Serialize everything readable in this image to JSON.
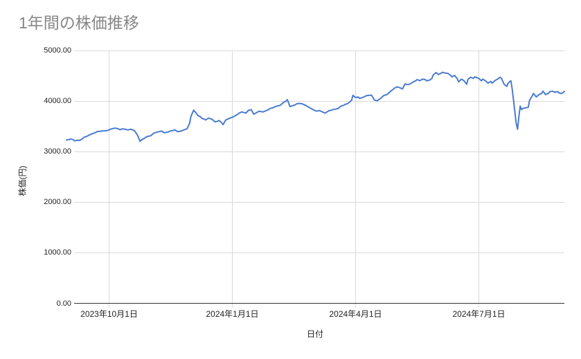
{
  "title": "1年間の株価推移",
  "colors": {
    "background": "#ffffff",
    "title_text": "#878787",
    "tick_text": "#222222",
    "grid": "#d9d9d9",
    "axis_line": "#333333",
    "series_line": "#4a7bd0"
  },
  "chart_data": {
    "type": "line",
    "title": "1年間の株価推移",
    "xlabel": "日付",
    "ylabel": "株価(円)",
    "legend": "none",
    "grid": true,
    "ylim": [
      0,
      5000
    ],
    "xlim": [
      0,
      372
    ],
    "x_unit": "days (0 ≈ 2023-09-01, read from tick spacing)",
    "y_axis": {
      "title": "株価(円)",
      "ticks": [
        {
          "value": 0,
          "label": "0.00"
        },
        {
          "value": 1000,
          "label": "1000.00"
        },
        {
          "value": 2000,
          "label": "2000.00"
        },
        {
          "value": 3000,
          "label": "3000.00"
        },
        {
          "value": 4000,
          "label": "4000.00"
        },
        {
          "value": 5000,
          "label": "5000.00"
        }
      ]
    },
    "x_axis": {
      "title": "日付",
      "ticks": [
        {
          "day": 31.6,
          "label": "2023年10月1日"
        },
        {
          "day": 123.7,
          "label": "2024年1月1日"
        },
        {
          "day": 215.8,
          "label": "2024年4月1日"
        },
        {
          "day": 307.9,
          "label": "2024年7月1日"
        }
      ]
    },
    "series": [
      {
        "name": "株価",
        "color": "#4a7bd0",
        "points": [
          [
            0,
            3230
          ],
          [
            2,
            3240
          ],
          [
            3,
            3251
          ],
          [
            5,
            3238
          ],
          [
            6,
            3214
          ],
          [
            8,
            3225
          ],
          [
            10,
            3223
          ],
          [
            12,
            3255
          ],
          [
            13,
            3283
          ],
          [
            15,
            3300
          ],
          [
            16,
            3315
          ],
          [
            18,
            3340
          ],
          [
            20,
            3361
          ],
          [
            22,
            3380
          ],
          [
            23,
            3397
          ],
          [
            25,
            3402
          ],
          [
            27,
            3407
          ],
          [
            29,
            3413
          ],
          [
            31,
            3420
          ],
          [
            33,
            3445
          ],
          [
            34,
            3452
          ],
          [
            36,
            3465
          ],
          [
            38,
            3458
          ],
          [
            40,
            3434
          ],
          [
            42,
            3452
          ],
          [
            44,
            3441
          ],
          [
            46,
            3429
          ],
          [
            48,
            3443
          ],
          [
            50,
            3425
          ],
          [
            51,
            3407
          ],
          [
            53,
            3330
          ],
          [
            55,
            3205
          ],
          [
            56,
            3232
          ],
          [
            58,
            3260
          ],
          [
            60,
            3297
          ],
          [
            62,
            3308
          ],
          [
            63,
            3315
          ],
          [
            65,
            3361
          ],
          [
            67,
            3380
          ],
          [
            68,
            3388
          ],
          [
            70,
            3400
          ],
          [
            71,
            3407
          ],
          [
            73,
            3374
          ],
          [
            75,
            3382
          ],
          [
            76,
            3388
          ],
          [
            78,
            3411
          ],
          [
            80,
            3420
          ],
          [
            81,
            3429
          ],
          [
            83,
            3395
          ],
          [
            85,
            3402
          ],
          [
            86,
            3411
          ],
          [
            88,
            3432
          ],
          [
            90,
            3450
          ],
          [
            92,
            3560
          ],
          [
            93,
            3700
          ],
          [
            95,
            3820
          ],
          [
            97,
            3760
          ],
          [
            98,
            3717
          ],
          [
            100,
            3690
          ],
          [
            101,
            3662
          ],
          [
            103,
            3640
          ],
          [
            104,
            3626
          ],
          [
            106,
            3662
          ],
          [
            108,
            3648
          ],
          [
            109,
            3635
          ],
          [
            111,
            3589
          ],
          [
            113,
            3600
          ],
          [
            114,
            3616
          ],
          [
            116,
            3570
          ],
          [
            117,
            3534
          ],
          [
            119,
            3626
          ],
          [
            121,
            3650
          ],
          [
            122,
            3662
          ],
          [
            124,
            3680
          ],
          [
            126,
            3708
          ],
          [
            128,
            3740
          ],
          [
            129,
            3762
          ],
          [
            131,
            3785
          ],
          [
            133,
            3770
          ],
          [
            134,
            3762
          ],
          [
            136,
            3817
          ],
          [
            138,
            3831
          ],
          [
            140,
            3740
          ],
          [
            142,
            3771
          ],
          [
            144,
            3799
          ],
          [
            146,
            3790
          ],
          [
            147,
            3785
          ],
          [
            149,
            3808
          ],
          [
            151,
            3830
          ],
          [
            152,
            3854
          ],
          [
            154,
            3866
          ],
          [
            155,
            3877
          ],
          [
            157,
            3900
          ],
          [
            159,
            3910
          ],
          [
            160,
            3922
          ],
          [
            162,
            3968
          ],
          [
            164,
            4000
          ],
          [
            165,
            4027
          ],
          [
            167,
            3890
          ],
          [
            169,
            3908
          ],
          [
            171,
            3928
          ],
          [
            172,
            3945
          ],
          [
            174,
            3954
          ],
          [
            176,
            3945
          ],
          [
            177,
            3936
          ],
          [
            179,
            3910
          ],
          [
            181,
            3880
          ],
          [
            183,
            3850
          ],
          [
            185,
            3820
          ],
          [
            187,
            3800
          ],
          [
            189,
            3812
          ],
          [
            191,
            3790
          ],
          [
            193,
            3762
          ],
          [
            195,
            3790
          ],
          [
            196,
            3808
          ],
          [
            198,
            3820
          ],
          [
            199,
            3831
          ],
          [
            201,
            3840
          ],
          [
            203,
            3854
          ],
          [
            205,
            3900
          ],
          [
            207,
            3915
          ],
          [
            208,
            3932
          ],
          [
            210,
            3950
          ],
          [
            211,
            3968
          ],
          [
            213,
            4014
          ],
          [
            214,
            4114
          ],
          [
            216,
            4068
          ],
          [
            218,
            4082
          ],
          [
            219,
            4050
          ],
          [
            221,
            4068
          ],
          [
            223,
            4090
          ],
          [
            224,
            4105
          ],
          [
            226,
            4114
          ],
          [
            228,
            4114
          ],
          [
            230,
            4023
          ],
          [
            232,
            4004
          ],
          [
            234,
            4040
          ],
          [
            235,
            4059
          ],
          [
            237,
            4110
          ],
          [
            239,
            4125
          ],
          [
            240,
            4140
          ],
          [
            242,
            4190
          ],
          [
            244,
            4230
          ],
          [
            245,
            4255
          ],
          [
            247,
            4280
          ],
          [
            249,
            4265
          ],
          [
            251,
            4240
          ],
          [
            253,
            4340
          ],
          [
            255,
            4324
          ],
          [
            257,
            4342
          ],
          [
            259,
            4379
          ],
          [
            261,
            4402
          ],
          [
            262,
            4425
          ],
          [
            264,
            4402
          ],
          [
            266,
            4434
          ],
          [
            268,
            4425
          ],
          [
            269,
            4402
          ],
          [
            271,
            4411
          ],
          [
            273,
            4448
          ],
          [
            274,
            4516
          ],
          [
            276,
            4562
          ],
          [
            278,
            4525
          ],
          [
            280,
            4552
          ],
          [
            281,
            4571
          ],
          [
            283,
            4552
          ],
          [
            285,
            4549
          ],
          [
            287,
            4507
          ],
          [
            288,
            4479
          ],
          [
            290,
            4507
          ],
          [
            292,
            4440
          ],
          [
            293,
            4379
          ],
          [
            295,
            4434
          ],
          [
            297,
            4402
          ],
          [
            299,
            4333
          ],
          [
            300,
            4434
          ],
          [
            302,
            4470
          ],
          [
            304,
            4448
          ],
          [
            305,
            4479
          ],
          [
            307,
            4460
          ],
          [
            308,
            4448
          ],
          [
            310,
            4402
          ],
          [
            311,
            4434
          ],
          [
            313,
            4402
          ],
          [
            315,
            4356
          ],
          [
            317,
            4388
          ],
          [
            318,
            4356
          ],
          [
            320,
            4402
          ],
          [
            322,
            4434
          ],
          [
            324,
            4470
          ],
          [
            325,
            4448
          ],
          [
            327,
            4333
          ],
          [
            329,
            4288
          ],
          [
            330,
            4356
          ],
          [
            332,
            4402
          ],
          [
            333,
            4242
          ],
          [
            334,
            4014
          ],
          [
            335,
            3785
          ],
          [
            336,
            3557
          ],
          [
            337,
            3442
          ],
          [
            338,
            3694
          ],
          [
            339,
            3900
          ],
          [
            340,
            3830
          ],
          [
            341,
            3853
          ],
          [
            343,
            3867
          ],
          [
            345,
            3877
          ],
          [
            346,
            4014
          ],
          [
            348,
            4105
          ],
          [
            349,
            4151
          ],
          [
            351,
            4082
          ],
          [
            353,
            4128
          ],
          [
            355,
            4151
          ],
          [
            356,
            4196
          ],
          [
            358,
            4128
          ],
          [
            360,
            4151
          ],
          [
            361,
            4183
          ],
          [
            363,
            4196
          ],
          [
            365,
            4174
          ],
          [
            367,
            4187
          ],
          [
            368,
            4160
          ],
          [
            370,
            4151
          ],
          [
            371,
            4168
          ],
          [
            372,
            4190
          ]
        ]
      }
    ]
  }
}
